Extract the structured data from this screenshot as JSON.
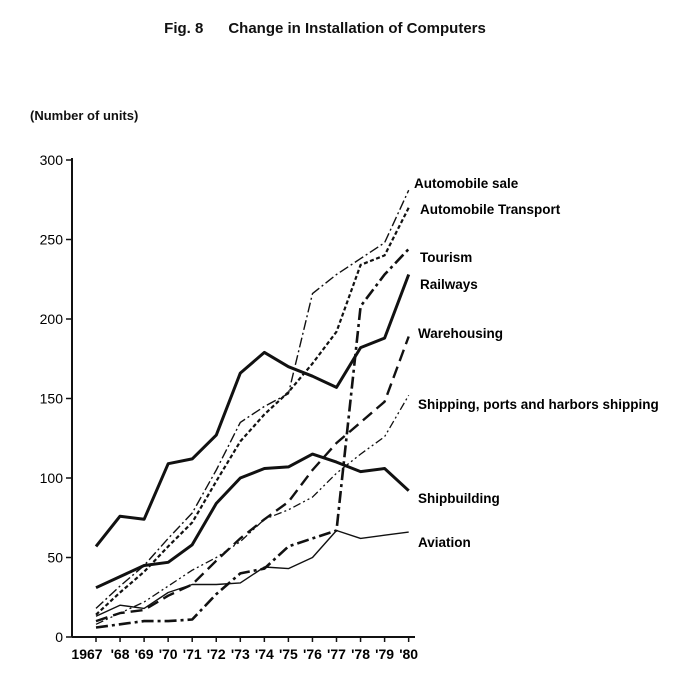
{
  "chart_data": {
    "type": "line",
    "title": "Fig. 8      Change in Installation of Computers",
    "ylabel": "(Number of units)",
    "xlabel": "",
    "ylim": [
      0,
      300
    ],
    "yticks": [
      "0",
      "50",
      "100",
      "150",
      "200",
      "250",
      "300"
    ],
    "ytick_values": [
      0,
      50,
      100,
      150,
      200,
      250,
      300
    ],
    "categories": [
      "1967",
      "'68",
      "'69",
      "'70",
      "'71",
      "'72",
      "'73",
      "'74",
      "'75",
      "'76",
      "'77",
      "'78",
      "'79",
      "'80"
    ],
    "grid": false,
    "legend": "direct labels at line ends (right)",
    "series": [
      {
        "name": "Automobile sale",
        "style": "dash-dot-thin",
        "values": [
          18,
          32,
          45,
          62,
          78,
          105,
          135,
          145,
          153,
          216,
          228,
          238,
          248,
          281
        ]
      },
      {
        "name": "Automobile Transport",
        "style": "dotted",
        "values": [
          14,
          28,
          41,
          57,
          72,
          98,
          123,
          140,
          154,
          172,
          192,
          234,
          240,
          270
        ]
      },
      {
        "name": "Tourism",
        "style": "long-dash-dot",
        "values": [
          6,
          8,
          10,
          10,
          11,
          27,
          40,
          43,
          57,
          62,
          67,
          208,
          228,
          244
        ]
      },
      {
        "name": "Railways",
        "style": "thick-solid",
        "values": [
          57,
          76,
          74,
          109,
          112,
          127,
          166,
          179,
          170,
          164,
          157,
          182,
          188,
          228
        ]
      },
      {
        "name": "Warehousing",
        "style": "long-dash",
        "values": [
          10,
          15,
          17,
          26,
          33,
          48,
          62,
          74,
          85,
          105,
          122,
          135,
          148,
          189
        ]
      },
      {
        "name": "Shipping, ports and harbors shipping",
        "style": "dash-dot-dot-thin",
        "values": [
          8,
          15,
          22,
          32,
          42,
          50,
          60,
          74,
          80,
          88,
          103,
          115,
          126,
          152
        ]
      },
      {
        "name": "Shipbuilding",
        "style": "thick-solid",
        "values": [
          31,
          38,
          45,
          47,
          58,
          84,
          100,
          106,
          107,
          115,
          110,
          104,
          106,
          92
        ]
      },
      {
        "name": "Aviation",
        "style": "thin-solid",
        "values": [
          13,
          20,
          18,
          28,
          33,
          33,
          34,
          44,
          43,
          50,
          67,
          62,
          64,
          66
        ]
      }
    ]
  }
}
